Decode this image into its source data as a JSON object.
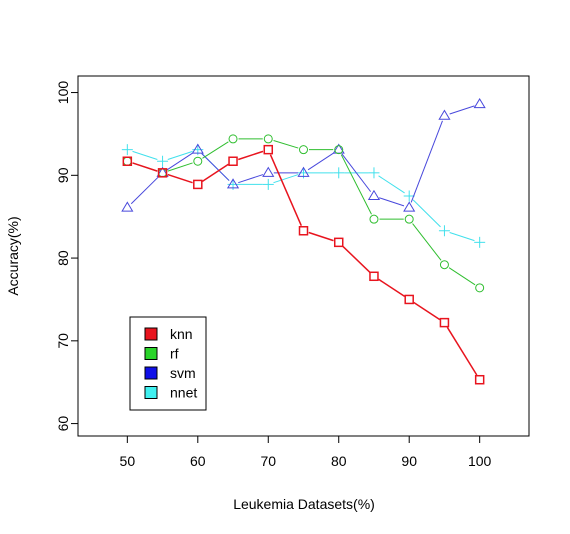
{
  "chart_data": {
    "type": "line",
    "xlabel": "Leukemia Datasets(%)",
    "ylabel": "Accuracy(%)",
    "xlim": [
      43,
      107
    ],
    "ylim": [
      58.5,
      102
    ],
    "x_ticks": [
      50,
      60,
      70,
      80,
      90,
      100
    ],
    "y_ticks": [
      60,
      70,
      80,
      90,
      100
    ],
    "grid": false,
    "legend_position": "bottom-left",
    "x": [
      50,
      55,
      60,
      65,
      70,
      75,
      80,
      85,
      90,
      95,
      100
    ],
    "series": [
      {
        "name": "knn",
        "color": "#e8141e",
        "legend_fill": "#e8141e",
        "marker": "square",
        "values": [
          91.7,
          90.3,
          88.9,
          91.7,
          93.1,
          83.3,
          81.9,
          77.8,
          75.0,
          72.2,
          65.3
        ]
      },
      {
        "name": "rf",
        "color": "#2fbe2f",
        "legend_fill": "#2ad42a",
        "marker": "circle",
        "values": [
          91.7,
          90.3,
          91.7,
          94.4,
          94.4,
          93.1,
          93.1,
          84.7,
          84.7,
          79.2,
          76.4
        ]
      },
      {
        "name": "svm",
        "color": "#4848dc",
        "legend_fill": "#1010e8",
        "marker": "triangle",
        "values": [
          86.1,
          90.3,
          93.1,
          88.9,
          90.3,
          90.3,
          93.1,
          87.5,
          86.1,
          97.2,
          98.6
        ]
      },
      {
        "name": "nnet",
        "color": "#40e0ec",
        "legend_fill": "#40f0f0",
        "marker": "plus",
        "values": [
          93.1,
          91.7,
          93.1,
          88.9,
          88.9,
          90.3,
          90.3,
          90.3,
          87.5,
          83.3,
          81.9
        ]
      }
    ]
  }
}
